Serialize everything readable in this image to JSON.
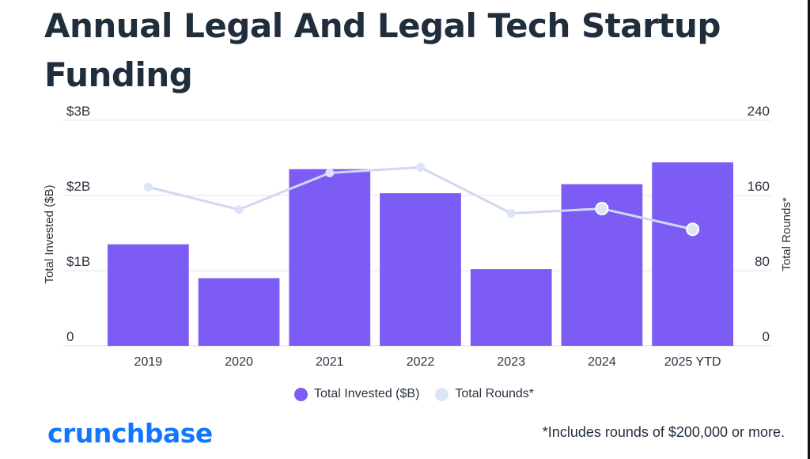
{
  "title": "Annual Legal And Legal Tech Startup Funding",
  "colors": {
    "bar": "#7c5cf5",
    "line": "#cfd9f3",
    "point": "#dce5f8",
    "text": "#2b3440",
    "grid": "#e6e6e6"
  },
  "chart_data": {
    "type": "bar+line",
    "categories": [
      "2019",
      "2020",
      "2021",
      "2022",
      "2023",
      "2024",
      "2025 YTD"
    ],
    "series": [
      {
        "name": "Total Invested ($B)",
        "type": "bar",
        "axis": "left",
        "values": [
          1.35,
          0.9,
          2.35,
          2.03,
          1.02,
          2.15,
          2.44
        ]
      },
      {
        "name": "Total Rounds*",
        "type": "line",
        "axis": "right",
        "values": [
          169,
          145,
          184,
          190,
          141,
          146,
          124
        ]
      }
    ],
    "y_left": {
      "label": "Total Invested ($B)",
      "range": [
        0,
        3
      ],
      "ticks": [
        0,
        1,
        2,
        3
      ],
      "tick_labels": [
        "0",
        "$1B",
        "$2B",
        "$3B"
      ]
    },
    "y_right": {
      "label": "Total Rounds*",
      "range": [
        0,
        240
      ],
      "ticks": [
        0,
        80,
        160,
        240
      ],
      "tick_labels": [
        "0",
        "80",
        "160",
        "240"
      ]
    },
    "grid": true,
    "legend": "bottom-center"
  },
  "legend": {
    "invested": "Total Invested ($B)",
    "rounds": "Total Rounds*"
  },
  "brand": "crunchbase",
  "footnote": "*Includes rounds of $200,000 or more."
}
